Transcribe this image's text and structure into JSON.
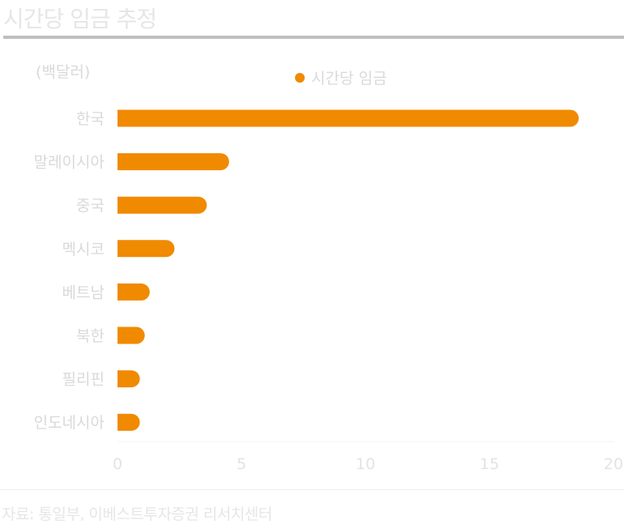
{
  "title": "시간당 임금 추정",
  "unit_label": "(백달러)",
  "source": "자료:  통일부, 이베스트투자증권 리서치센터",
  "colors": {
    "bar": "#f08a00",
    "text": "#d9d9d9",
    "rule": "#bfbfbf"
  },
  "chart_data": {
    "type": "bar",
    "orientation": "horizontal",
    "categories": [
      "한국",
      "말레이시아",
      "중국",
      "멕시코",
      "베트남",
      "북한",
      "필리핀",
      "인도네시아"
    ],
    "series": [
      {
        "name": "시간당 임금",
        "values": [
          18.6,
          4.5,
          3.6,
          2.3,
          1.3,
          1.1,
          0.9,
          0.9
        ]
      }
    ],
    "xlim": [
      0,
      20
    ],
    "xticks": [
      0,
      5,
      10,
      15,
      20
    ],
    "grid": false,
    "legend_position": "top"
  }
}
